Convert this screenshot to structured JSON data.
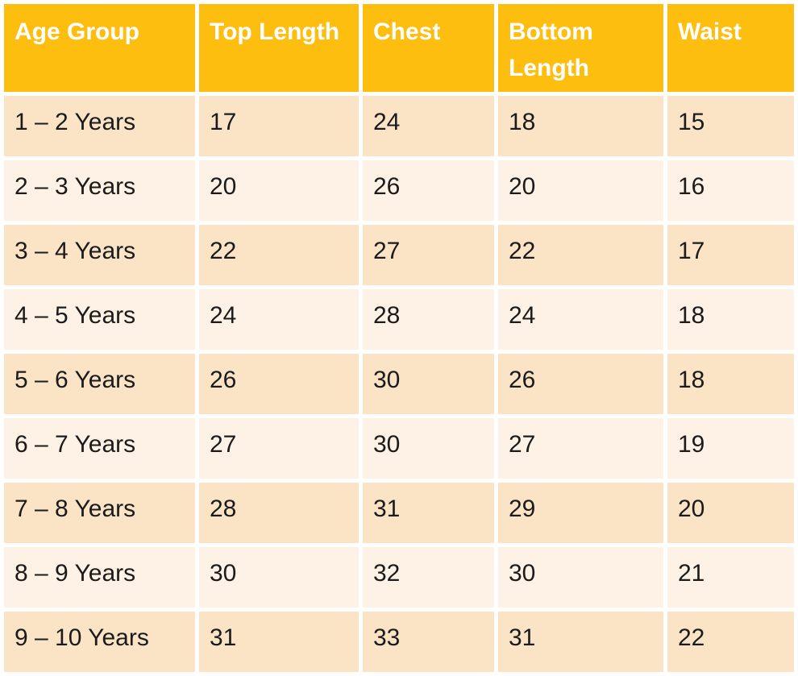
{
  "chart_data": {
    "type": "table",
    "columns": [
      "Age Group",
      "Top Length",
      "Chest",
      "Bottom Length",
      "Waist"
    ],
    "rows": [
      {
        "age": "1 – 2 Years",
        "values": [
          17,
          24,
          18,
          15
        ]
      },
      {
        "age": "2 – 3 Years",
        "values": [
          20,
          26,
          20,
          16
        ]
      },
      {
        "age": "3 – 4 Years",
        "values": [
          22,
          27,
          22,
          17
        ]
      },
      {
        "age": "4 – 5 Years",
        "values": [
          24,
          28,
          24,
          18
        ]
      },
      {
        "age": "5 – 6 Years",
        "values": [
          26,
          30,
          26,
          18
        ]
      },
      {
        "age": "6 – 7 Years",
        "values": [
          27,
          30,
          27,
          19
        ]
      },
      {
        "age": "7 – 8 Years",
        "values": [
          28,
          31,
          29,
          20
        ]
      },
      {
        "age": "8 – 9 Years",
        "values": [
          30,
          32,
          30,
          21
        ]
      },
      {
        "age": "9 – 10 Years",
        "values": [
          31,
          33,
          31,
          22
        ]
      }
    ]
  },
  "colors": {
    "header_bg": "#FEBE10",
    "header_text": "#FFFFFF",
    "row_dark": "#FBE3C6",
    "row_light": "#FDF2E5",
    "body_text": "#1B1B1B",
    "gap": "#FFFFFF"
  }
}
